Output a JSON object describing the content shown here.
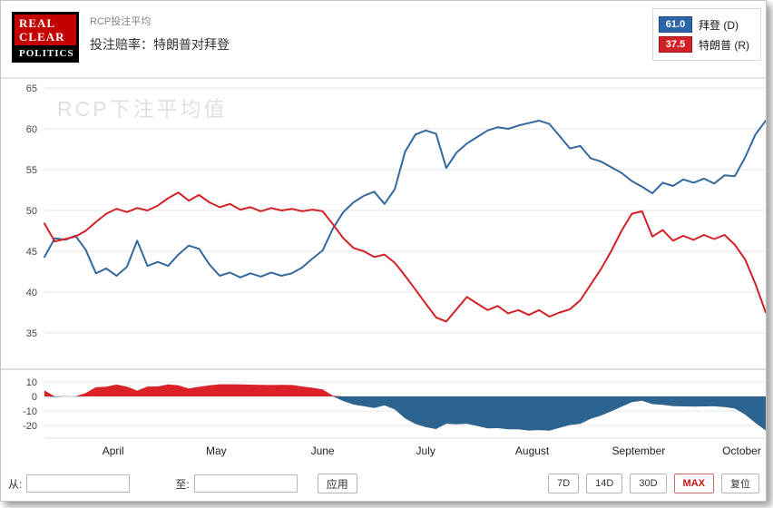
{
  "header": {
    "logo_lines": [
      "REAL",
      "CLEAR",
      "POLITICS"
    ],
    "kicker": "RCP投注平均",
    "title": "投注赔率：特朗普对拜登"
  },
  "legend": {
    "items": [
      {
        "value": "61.0",
        "label": "拜登 (D)",
        "color": "#2a66a8"
      },
      {
        "value": "37.5",
        "label": "特朗普 (R)",
        "color": "#d22027"
      }
    ]
  },
  "toolbar": {
    "from_label": "从:",
    "to_label": "至:",
    "apply_label": "应用",
    "ranges": [
      {
        "label": "7D",
        "active": false
      },
      {
        "label": "14D",
        "active": false
      },
      {
        "label": "30D",
        "active": false
      },
      {
        "label": "MAX",
        "active": true
      },
      {
        "label": "复位",
        "active": false
      }
    ]
  },
  "chart_data": {
    "type": "line",
    "watermark": "RCP下注平均值",
    "x": [
      "2020-03-12",
      "2020-03-15",
      "2020-03-18",
      "2020-03-21",
      "2020-03-24",
      "2020-03-27",
      "2020-03-30",
      "2020-04-02",
      "2020-04-05",
      "2020-04-08",
      "2020-04-11",
      "2020-04-14",
      "2020-04-17",
      "2020-04-20",
      "2020-04-23",
      "2020-04-26",
      "2020-04-29",
      "2020-05-02",
      "2020-05-05",
      "2020-05-08",
      "2020-05-11",
      "2020-05-14",
      "2020-05-17",
      "2020-05-20",
      "2020-05-23",
      "2020-05-26",
      "2020-05-29",
      "2020-06-01",
      "2020-06-04",
      "2020-06-07",
      "2020-06-10",
      "2020-06-13",
      "2020-06-16",
      "2020-06-19",
      "2020-06-22",
      "2020-06-25",
      "2020-06-28",
      "2020-07-01",
      "2020-07-04",
      "2020-07-07",
      "2020-07-10",
      "2020-07-13",
      "2020-07-16",
      "2020-07-19",
      "2020-07-22",
      "2020-07-25",
      "2020-07-28",
      "2020-07-31",
      "2020-08-03",
      "2020-08-06",
      "2020-08-09",
      "2020-08-12",
      "2020-08-15",
      "2020-08-18",
      "2020-08-21",
      "2020-08-24",
      "2020-08-27",
      "2020-08-30",
      "2020-09-02",
      "2020-09-05",
      "2020-09-08",
      "2020-09-11",
      "2020-09-14",
      "2020-09-17",
      "2020-09-20",
      "2020-09-23",
      "2020-09-26",
      "2020-09-29",
      "2020-10-02",
      "2020-10-05",
      "2020-10-08"
    ],
    "series": [
      {
        "id": "biden",
        "name": "拜登 (D)",
        "color": "#34689f",
        "values": [
          44.3,
          46.6,
          46.4,
          46.9,
          45.2,
          42.3,
          42.9,
          42.0,
          43.1,
          46.3,
          43.2,
          43.7,
          43.2,
          44.6,
          45.7,
          45.3,
          43.4,
          42.0,
          42.4,
          41.8,
          42.3,
          41.9,
          42.4,
          42.0,
          42.3,
          43.0,
          44.1,
          45.1,
          47.8,
          49.8,
          51.0,
          51.8,
          52.3,
          50.8,
          52.6,
          57.2,
          59.3,
          59.8,
          59.4,
          55.2,
          57.1,
          58.2,
          59.0,
          59.8,
          60.2,
          60.0,
          60.4,
          60.7,
          61.0,
          60.6,
          59.1,
          57.6,
          57.9,
          56.4,
          56.0,
          55.3,
          54.6,
          53.6,
          52.9,
          52.1,
          53.4,
          53.0,
          53.8,
          53.4,
          53.9,
          53.3,
          54.3,
          54.2,
          56.5,
          59.3,
          61.0
        ]
      },
      {
        "id": "trump",
        "name": "特朗普 (R)",
        "color": "#d32127",
        "values": [
          48.4,
          46.2,
          46.5,
          46.8,
          47.5,
          48.6,
          49.6,
          50.2,
          49.8,
          50.3,
          50.0,
          50.6,
          51.5,
          52.2,
          51.2,
          51.9,
          51.0,
          50.4,
          50.8,
          50.1,
          50.4,
          49.9,
          50.3,
          50.0,
          50.2,
          49.9,
          50.1,
          49.9,
          48.3,
          46.6,
          45.4,
          45.0,
          44.3,
          44.6,
          43.6,
          42.0,
          40.3,
          38.6,
          36.9,
          36.4,
          37.9,
          39.4,
          38.6,
          37.8,
          38.3,
          37.4,
          37.8,
          37.2,
          37.8,
          37.0,
          37.5,
          37.9,
          39.0,
          40.9,
          42.8,
          45.0,
          47.5,
          49.6,
          49.9,
          46.8,
          47.6,
          46.3,
          46.9,
          46.4,
          47.0,
          46.5,
          47.0,
          45.8,
          44.0,
          41.0,
          37.5
        ]
      }
    ],
    "main_axis": {
      "ticks": [
        65,
        60,
        55,
        50,
        45,
        40,
        35
      ],
      "ylim": [
        33,
        66
      ]
    },
    "diff_pane": {
      "ticks": [
        10,
        0,
        -10,
        -20
      ],
      "ylim": [
        -27,
        13
      ],
      "description": "difference (Trump minus Biden) area pane"
    },
    "diff_colors": {
      "positive": "#da2128",
      "negative": "#2d648f"
    },
    "x_ticks": [
      {
        "label": "April",
        "date": "2020-04-01"
      },
      {
        "label": "May",
        "date": "2020-05-01"
      },
      {
        "label": "June",
        "date": "2020-06-01"
      },
      {
        "label": "July",
        "date": "2020-07-01"
      },
      {
        "label": "August",
        "date": "2020-08-01"
      },
      {
        "label": "September",
        "date": "2020-09-01"
      },
      {
        "label": "October",
        "date": "2020-10-01"
      }
    ],
    "legend_position": "top-right",
    "grid": true
  }
}
